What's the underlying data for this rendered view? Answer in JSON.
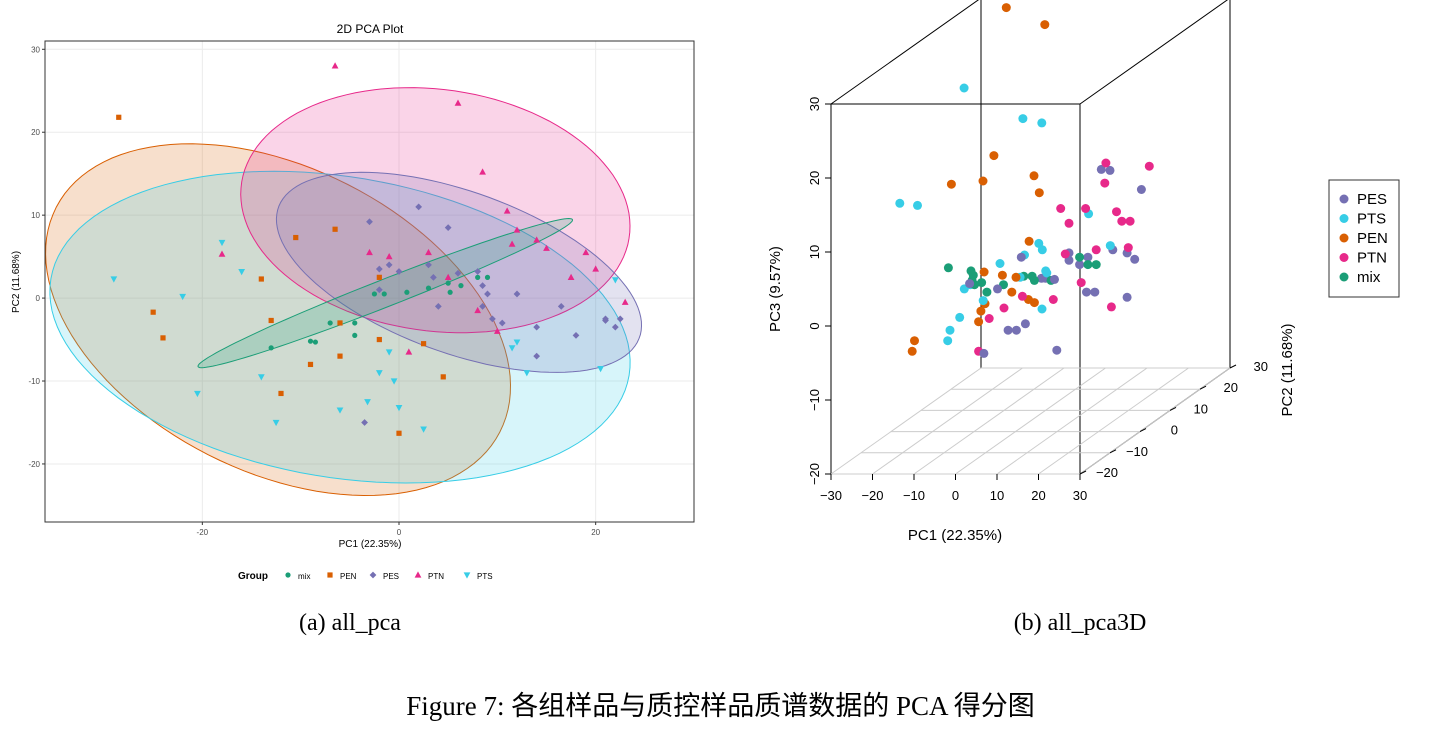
{
  "captions": {
    "sub_a": "(a) all_pca",
    "sub_b": "(b) all_pca3D",
    "figure": "Figure 7: 各组样品与质控样品质谱数据的 PCA 得分图"
  },
  "colors": {
    "mix": "#1B9E77",
    "PEN": "#D95F02",
    "PES": "#7570B3",
    "PTN": "#E7298A",
    "PTS": "#37CDE6"
  },
  "chart_data": [
    {
      "type": "scatter",
      "title": "2D PCA Plot",
      "xlabel": "PC1 (22.35%)",
      "ylabel": "PC2 (11.68%)",
      "xlim": [
        -36,
        30
      ],
      "ylim": [
        -27,
        31
      ],
      "xticks": [
        "-20",
        "0",
        "20"
      ],
      "yticks": [
        "-20",
        "-10",
        "0",
        "10",
        "20",
        "30"
      ],
      "grid": true,
      "legend": {
        "title": "Group",
        "position": "bottom",
        "entries": [
          "mix",
          "PEN",
          "PES",
          "PTN",
          "PTS"
        ]
      },
      "ellipses": [
        {
          "group": "PEN",
          "center": [
            -12.3,
            -2.6
          ],
          "semi_axes": [
            26.5,
            17.5
          ],
          "angle_deg": -37
        },
        {
          "group": "PTS",
          "center": [
            -6,
            -3.5
          ],
          "semi_axes": [
            30,
            18
          ],
          "angle_deg": -13
        },
        {
          "group": "PTN",
          "center": [
            3.7,
            10.6
          ],
          "semi_axes": [
            20,
            14.5
          ],
          "angle_deg": -12
        },
        {
          "group": "PES",
          "center": [
            6.1,
            3.1
          ],
          "semi_axes": [
            20,
            9.5
          ],
          "angle_deg": -25
        },
        {
          "group": "mix",
          "center": [
            -1.4,
            0.6
          ],
          "semi_axes": [
            21,
            1.6
          ],
          "angle_deg": 25
        }
      ],
      "series": [
        {
          "name": "mix",
          "marker": "circle",
          "points": [
            [
              -13,
              -6
            ],
            [
              -9,
              -5.2
            ],
            [
              -8.5,
              -5.3
            ],
            [
              -7,
              -3
            ],
            [
              -4.5,
              -4.5
            ],
            [
              -4.5,
              -3
            ],
            [
              -2.5,
              0.5
            ],
            [
              -1.5,
              0.5
            ],
            [
              0.8,
              0.7
            ],
            [
              3,
              1.2
            ],
            [
              5,
              1.8
            ],
            [
              5.2,
              0.7
            ],
            [
              6.3,
              1.5
            ],
            [
              8,
              2.5
            ],
            [
              9,
              2.5
            ]
          ]
        },
        {
          "name": "PEN",
          "marker": "square",
          "points": [
            [
              -28.5,
              21.8
            ],
            [
              -25,
              -1.7
            ],
            [
              -24,
              -4.8
            ],
            [
              -14,
              2.3
            ],
            [
              -13,
              -2.7
            ],
            [
              -12,
              -11.5
            ],
            [
              -10.5,
              7.3
            ],
            [
              -9,
              -8
            ],
            [
              -6.5,
              8.3
            ],
            [
              -6,
              -7
            ],
            [
              -6,
              -3
            ],
            [
              -2,
              -5
            ],
            [
              -2,
              2.5
            ],
            [
              0,
              -16.3
            ],
            [
              2.5,
              -5.5
            ],
            [
              4.5,
              -9.5
            ]
          ]
        },
        {
          "name": "PES",
          "marker": "diamond",
          "points": [
            [
              -3.5,
              -15
            ],
            [
              -3,
              9.2
            ],
            [
              -2,
              1
            ],
            [
              -2,
              3.5
            ],
            [
              -1,
              4
            ],
            [
              0,
              3.2
            ],
            [
              2,
              11
            ],
            [
              3,
              4
            ],
            [
              3.5,
              2.5
            ],
            [
              4,
              -1
            ],
            [
              5,
              8.5
            ],
            [
              6,
              3
            ],
            [
              8,
              3.2
            ],
            [
              8.5,
              1.5
            ],
            [
              8.5,
              -1
            ],
            [
              9,
              0.5
            ],
            [
              9.5,
              -2.5
            ],
            [
              10.5,
              -3
            ],
            [
              12,
              0.5
            ],
            [
              14,
              -3.5
            ],
            [
              14,
              -7
            ],
            [
              16.5,
              -1
            ],
            [
              18,
              -4.5
            ],
            [
              21,
              -2.5
            ],
            [
              21,
              -2.7
            ],
            [
              22,
              -3.5
            ],
            [
              22.5,
              -2.5
            ]
          ]
        },
        {
          "name": "PTN",
          "marker": "triangle-up",
          "points": [
            [
              -18,
              5.3
            ],
            [
              -6.5,
              28
            ],
            [
              -3,
              5.5
            ],
            [
              -1,
              5
            ],
            [
              1,
              -6.5
            ],
            [
              3,
              5.5
            ],
            [
              5,
              2.5
            ],
            [
              6,
              23.5
            ],
            [
              8,
              -1.5
            ],
            [
              8.5,
              15.2
            ],
            [
              10,
              -4
            ],
            [
              11,
              10.5
            ],
            [
              11.5,
              6.5
            ],
            [
              12,
              8.2
            ],
            [
              14,
              7
            ],
            [
              15,
              6
            ],
            [
              17.5,
              2.5
            ],
            [
              19,
              5.5
            ],
            [
              20,
              3.5
            ],
            [
              23,
              -0.5
            ]
          ]
        },
        {
          "name": "PTS",
          "marker": "triangle-down",
          "points": [
            [
              -29,
              2.3
            ],
            [
              -22,
              0.2
            ],
            [
              -20.5,
              -11.5
            ],
            [
              -18,
              6.7
            ],
            [
              -16,
              3.2
            ],
            [
              -14,
              -9.5
            ],
            [
              -12.5,
              -15
            ],
            [
              -6,
              -13.5
            ],
            [
              -3.2,
              -12.5
            ],
            [
              -2,
              -9
            ],
            [
              -1,
              -6.5
            ],
            [
              -0.5,
              -10
            ],
            [
              0,
              -13.2
            ],
            [
              2.5,
              -15.8
            ],
            [
              11.5,
              -6
            ],
            [
              12,
              -5.3
            ],
            [
              13,
              -9
            ],
            [
              20.5,
              -8.5
            ],
            [
              22,
              2.2
            ]
          ]
        }
      ]
    },
    {
      "type": "scatter",
      "title": "",
      "xlabel": "PC1 (22.35%)",
      "ylabel": "PC2 (11.68%)",
      "zlabel": "PC3 (9.57%)",
      "xlim": [
        -30,
        30
      ],
      "ylim": [
        -20,
        30
      ],
      "zlim": [
        -20,
        30
      ],
      "xticks": [
        "-30",
        "-20",
        "-10",
        "0",
        "10",
        "20",
        "30"
      ],
      "yticks": [
        "-20",
        "-10",
        "0",
        "10",
        "20",
        "30"
      ],
      "zticks": [
        "-20",
        "-10",
        "0",
        "10",
        "20",
        "30"
      ],
      "grid": "floor",
      "legend": {
        "position": "right",
        "entries": [
          "PES",
          "PTS",
          "PEN",
          "PTN",
          "mix"
        ]
      },
      "series": [
        {
          "name": "PES",
          "points": [
            [
              -6,
              -7,
              2
            ],
            [
              -4,
              -5,
              -8
            ],
            [
              0,
              -6,
              1
            ],
            [
              4,
              -8,
              -4
            ],
            [
              6,
              -8,
              -4
            ],
            [
              6,
              -5,
              -4
            ],
            [
              7,
              -1,
              1
            ],
            [
              8,
              -1,
              1
            ],
            [
              10,
              4,
              3
            ],
            [
              10,
              4,
              2
            ],
            [
              12,
              12,
              12
            ],
            [
              13,
              -5,
              2
            ],
            [
              14,
              2,
              2
            ],
            [
              15,
              -7,
              -7
            ],
            [
              16,
              2,
              3
            ],
            [
              17,
              8,
              13
            ],
            [
              20,
              -4,
              0
            ],
            [
              22,
              -4,
              0
            ],
            [
              22,
              2,
              4
            ],
            [
              24,
              4,
              3
            ],
            [
              24,
              4,
              -3
            ],
            [
              26,
              6,
              11
            ],
            [
              28,
              1,
              3
            ],
            [
              5,
              -5,
              5
            ]
          ]
        },
        {
          "name": "PTS",
          "points": [
            [
              -25,
              -4,
              12
            ],
            [
              -20,
              -5,
              12
            ],
            [
              -12,
              -2,
              -4
            ],
            [
              -10,
              -8,
              -4
            ],
            [
              -8,
              -6,
              1
            ],
            [
              -8,
              -4,
              1
            ],
            [
              -12,
              -6,
              -6
            ],
            [
              -4,
              8,
              20
            ],
            [
              -2,
              -8,
              0
            ],
            [
              -3,
              -1,
              3
            ],
            [
              2,
              6,
              20
            ],
            [
              0,
              3,
              3
            ],
            [
              2,
              5,
              4
            ],
            [
              4,
              -4,
              2
            ],
            [
              5,
              2,
              4
            ],
            [
              8,
              -1,
              2
            ],
            [
              9,
              -2,
              2
            ],
            [
              10,
              -5,
              -2
            ],
            [
              14,
              5,
              8
            ],
            [
              25,
              -3,
              6
            ],
            [
              -16,
              5,
              25
            ]
          ]
        },
        {
          "name": "PEN",
          "points": [
            [
              -22,
              -4,
              -8
            ],
            [
              -20,
              -6,
              -6
            ],
            [
              -14,
              -2,
              14
            ],
            [
              -11,
              8,
              15
            ],
            [
              -10,
              3,
              13
            ],
            [
              -9,
              2,
              1
            ],
            [
              -6,
              -4,
              -4
            ],
            [
              -4,
              -6,
              -2
            ],
            [
              -3,
              -6,
              -1
            ],
            [
              -1,
              -3,
              2
            ],
            [
              2,
              -4,
              0
            ],
            [
              3,
              -4,
              2
            ],
            [
              3,
              2,
              14
            ],
            [
              4,
              -1,
              6
            ],
            [
              5,
              1,
              12
            ],
            [
              6,
              -2,
              -2
            ],
            [
              -8,
              8,
              35
            ],
            [
              2,
              7,
              33
            ],
            [
              6,
              -4,
              -1
            ]
          ]
        },
        {
          "name": "PTN",
          "points": [
            [
              -6,
              -4,
              -8
            ],
            [
              -2,
              -6,
              -3
            ],
            [
              3,
              -8,
              -1
            ],
            [
              6,
              -6,
              0
            ],
            [
              8,
              4,
              9
            ],
            [
              10,
              4,
              7
            ],
            [
              12,
              -4,
              -1
            ],
            [
              12,
              0,
              4
            ],
            [
              14,
              4,
              9
            ],
            [
              15,
              9,
              11
            ],
            [
              16,
              8,
              14
            ],
            [
              18,
              -3,
              1
            ],
            [
              20,
              6,
              8
            ],
            [
              22,
              5,
              7
            ],
            [
              24,
              5,
              7
            ],
            [
              25,
              10,
              13
            ],
            [
              26,
              -4,
              -2
            ],
            [
              25,
              3,
              4
            ],
            [
              18,
              2,
              4
            ]
          ]
        },
        {
          "name": "mix",
          "points": [
            [
              -14,
              -3,
              3
            ],
            [
              -10,
              -1,
              2
            ],
            [
              -9,
              -2,
              1
            ],
            [
              -8,
              -3,
              2
            ],
            [
              -7,
              -4,
              1
            ],
            [
              -6,
              -3,
              1
            ],
            [
              -4,
              -4,
              0
            ],
            [
              0,
              -4,
              1
            ],
            [
              2,
              0,
              1
            ],
            [
              4,
              0,
              1
            ],
            [
              6,
              -2,
              1
            ],
            [
              10,
              -2,
              1
            ],
            [
              14,
              2,
              3
            ],
            [
              16,
              2,
              2
            ],
            [
              18,
              2,
              2
            ]
          ]
        }
      ]
    }
  ]
}
